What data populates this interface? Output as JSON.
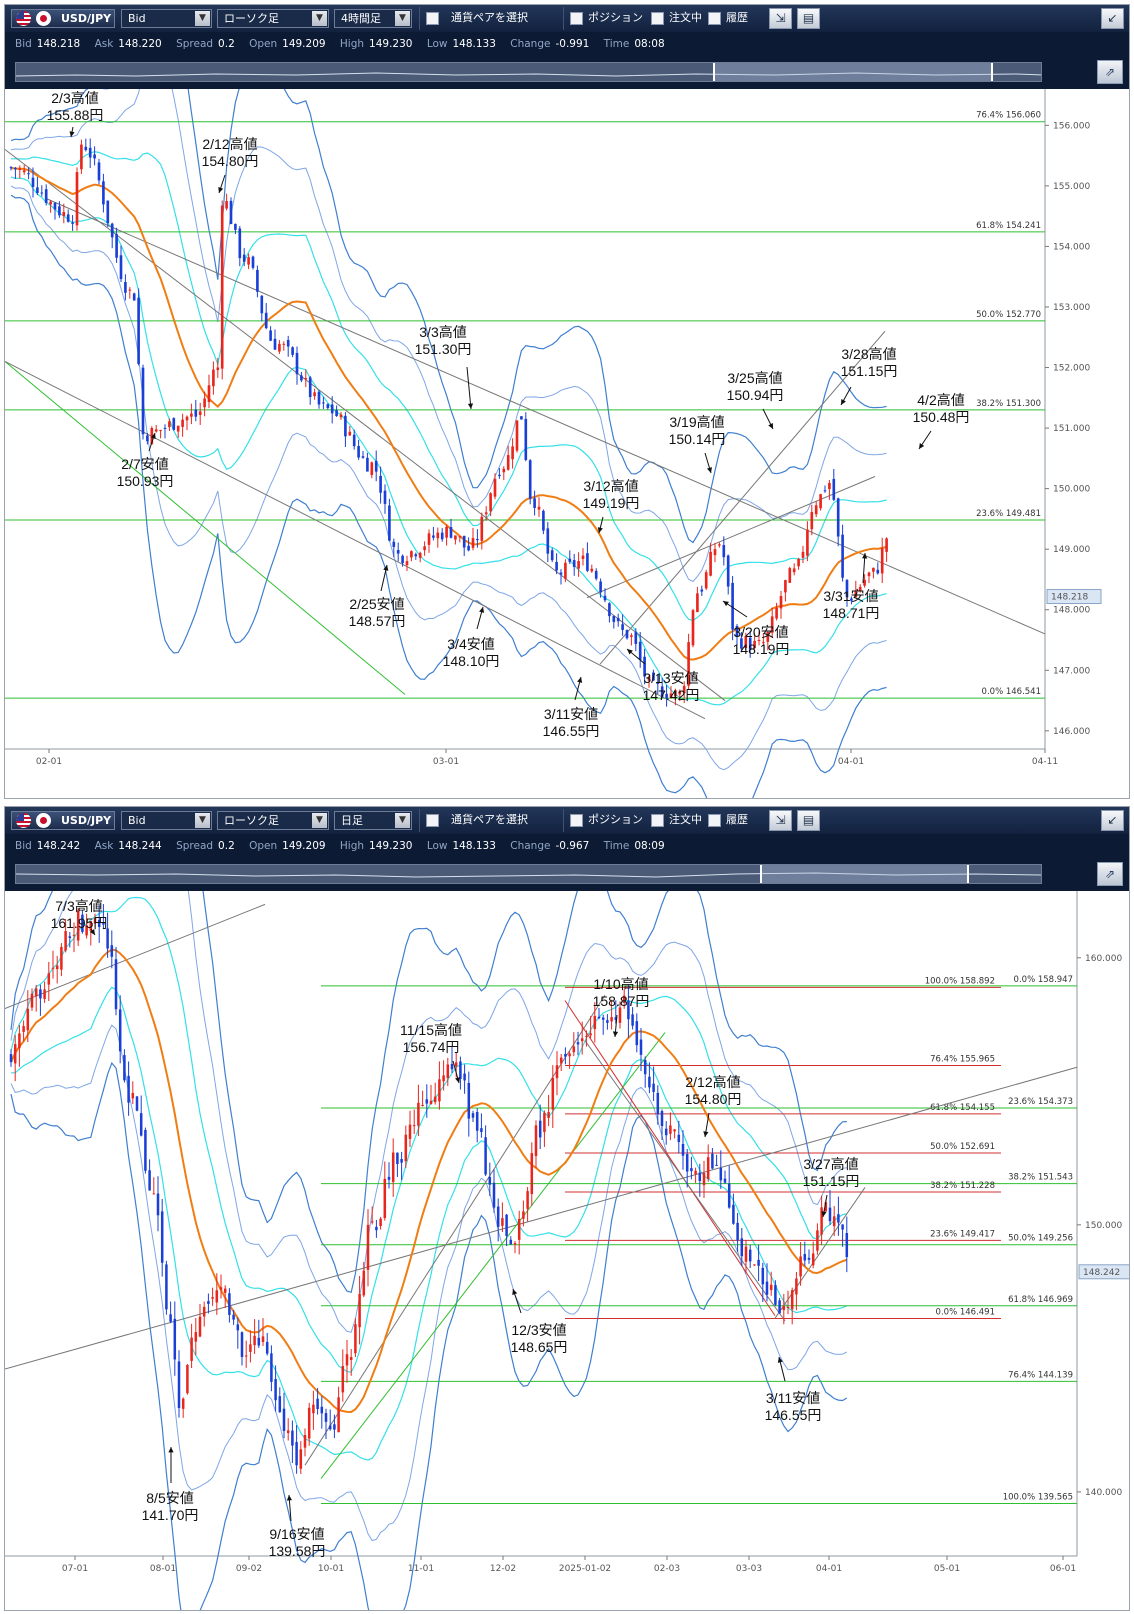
{
  "panels": [
    {
      "toolbar": {
        "symbol": "USD/JPY",
        "price_type": "Bid",
        "chart_type": "ローソク足",
        "timeframe": "4時間足",
        "pair_select": "通貨ペアを選択",
        "position": "ポジション",
        "orders": "注文中",
        "history": "履歴"
      },
      "info": {
        "bid_k": "Bid",
        "bid": "148.218",
        "ask_k": "Ask",
        "ask": "148.220",
        "spread_k": "Spread",
        "spread": "0.2",
        "open_k": "Open",
        "open": "149.209",
        "high_k": "High",
        "high": "149.230",
        "low_k": "Low",
        "low": "148.133",
        "change_k": "Change",
        "change": "-0.991",
        "time_k": "Time",
        "time": "08:08"
      }
    },
    {
      "toolbar": {
        "symbol": "USD/JPY",
        "price_type": "Bid",
        "chart_type": "ローソク足",
        "timeframe": "日足",
        "pair_select": "通貨ペアを選択",
        "position": "ポジション",
        "orders": "注文中",
        "history": "履歴"
      },
      "info": {
        "bid_k": "Bid",
        "bid": "148.242",
        "ask_k": "Ask",
        "ask": "148.244",
        "spread_k": "Spread",
        "spread": "0.2",
        "open_k": "Open",
        "open": "149.209",
        "high_k": "High",
        "high": "149.230",
        "low_k": "Low",
        "low": "148.133",
        "change_k": "Change",
        "change": "-0.967",
        "time_k": "Time",
        "time": "08:09"
      }
    }
  ],
  "colors": {
    "bull": "#e8261e",
    "bear": "#1a3fd6",
    "ma": "#f07d14",
    "bb_outer": "#3f7fd0",
    "bb_mid": "#7fa6e6",
    "bb_inner": "#34e0e8",
    "fib_green": "#2fbf2f",
    "fib_red": "#d23030",
    "trend": "#777777",
    "toolbar": "#162645"
  },
  "chart_data": [
    {
      "type": "candlestick",
      "timeframe": "4時間足",
      "ylim": [
        145.7,
        156.6
      ],
      "yticks": [
        "156.000",
        "155.000",
        "154.000",
        "153.000",
        "152.000",
        "151.000",
        "150.000",
        "149.000",
        "148.000",
        "147.000",
        "146.000"
      ],
      "xticks": [
        "02-01",
        "03-01",
        "04-01",
        "04-11"
      ],
      "current_price": "148.218",
      "key_points": [
        {
          "date": "2/3",
          "value": 155.88,
          "kind": "high"
        },
        {
          "date": "2/7",
          "value": 150.93,
          "kind": "low"
        },
        {
          "date": "2/12",
          "value": 154.8,
          "kind": "high"
        },
        {
          "date": "2/25",
          "value": 148.57,
          "kind": "low"
        },
        {
          "date": "3/3",
          "value": 151.3,
          "kind": "high"
        },
        {
          "date": "3/4",
          "value": 148.1,
          "kind": "low"
        },
        {
          "date": "3/11",
          "value": 146.55,
          "kind": "low"
        },
        {
          "date": "3/12",
          "value": 149.19,
          "kind": "high"
        },
        {
          "date": "3/13",
          "value": 147.42,
          "kind": "low"
        },
        {
          "date": "3/19",
          "value": 150.14,
          "kind": "high"
        },
        {
          "date": "3/20",
          "value": 148.19,
          "kind": "low"
        },
        {
          "date": "3/25",
          "value": 150.94,
          "kind": "high"
        },
        {
          "date": "3/28",
          "value": 151.15,
          "kind": "high"
        },
        {
          "date": "3/31",
          "value": 148.71,
          "kind": "low"
        },
        {
          "date": "4/2",
          "value": 150.48,
          "kind": "high"
        }
      ],
      "annotations": [
        {
          "l1": "2/3高値",
          "l2": "155.88円"
        },
        {
          "l1": "2/12高値",
          "l2": "154.80円"
        },
        {
          "l1": "2/7安値",
          "l2": "150.93円"
        },
        {
          "l1": "3/3高値",
          "l2": "151.30円"
        },
        {
          "l1": "2/25安値",
          "l2": "148.57円"
        },
        {
          "l1": "3/4安値",
          "l2": "148.10円"
        },
        {
          "l1": "3/11安値",
          "l2": "146.55円"
        },
        {
          "l1": "3/12高値",
          "l2": "149.19円"
        },
        {
          "l1": "3/13安値",
          "l2": "147.42円"
        },
        {
          "l1": "3/19高値",
          "l2": "150.14円"
        },
        {
          "l1": "3/20安値",
          "l2": "148.19円"
        },
        {
          "l1": "3/25高値",
          "l2": "150.94円"
        },
        {
          "l1": "3/28高値",
          "l2": "151.15円"
        },
        {
          "l1": "3/31安値",
          "l2": "148.71円"
        },
        {
          "l1": "4/2高値",
          "l2": "150.48円"
        }
      ],
      "fib_levels": [
        {
          "label": "76.4%",
          "value": "156.060",
          "price": 156.06
        },
        {
          "label": "61.8%",
          "value": "154.241",
          "price": 154.241
        },
        {
          "label": "50.0%",
          "value": "152.770",
          "price": 152.77
        },
        {
          "label": "38.2%",
          "value": "151.300",
          "price": 151.3
        },
        {
          "label": "23.6%",
          "value": "149.481",
          "price": 149.481
        },
        {
          "label": "0.0%",
          "value": "146.541",
          "price": 146.541
        }
      ]
    },
    {
      "type": "candlestick",
      "timeframe": "日足",
      "ylim": [
        137.6,
        162.5
      ],
      "yticks": [
        "160.000",
        "150.000",
        "140.000"
      ],
      "xticks": [
        "07-01",
        "08-01",
        "09-02",
        "10-01",
        "11-01",
        "12-02",
        "2025-01-02",
        "02-03",
        "03-03",
        "04-01",
        "05-01",
        "06-01"
      ],
      "current_price": "148.242",
      "key_points": [
        {
          "date": "7/3",
          "value": 161.95,
          "kind": "high"
        },
        {
          "date": "8/5",
          "value": 141.7,
          "kind": "low"
        },
        {
          "date": "9/16",
          "value": 139.58,
          "kind": "low"
        },
        {
          "date": "11/15",
          "value": 156.74,
          "kind": "high"
        },
        {
          "date": "12/3",
          "value": 148.65,
          "kind": "low"
        },
        {
          "date": "1/10",
          "value": 158.87,
          "kind": "high"
        },
        {
          "date": "2/12",
          "value": 154.8,
          "kind": "high"
        },
        {
          "date": "3/11",
          "value": 146.55,
          "kind": "low"
        },
        {
          "date": "3/27",
          "value": 151.15,
          "kind": "high"
        }
      ],
      "annotations": [
        {
          "l1": "7/3高値",
          "l2": "161.95円"
        },
        {
          "l1": "8/5安値",
          "l2": "141.70円"
        },
        {
          "l1": "9/16安値",
          "l2": "139.58円"
        },
        {
          "l1": "11/15高値",
          "l2": "156.74円"
        },
        {
          "l1": "12/3安値",
          "l2": "148.65円"
        },
        {
          "l1": "1/10高値",
          "l2": "158.87円"
        },
        {
          "l1": "2/12高値",
          "l2": "154.80円"
        },
        {
          "l1": "3/11安値",
          "l2": "146.55円"
        },
        {
          "l1": "3/27高値",
          "l2": "151.15円"
        }
      ],
      "fib_green": [
        {
          "label": "0.0%",
          "value": "158.947",
          "price": 158.947
        },
        {
          "label": "23.6%",
          "value": "154.373",
          "price": 154.373
        },
        {
          "label": "38.2%",
          "value": "151.543",
          "price": 151.543
        },
        {
          "label": "50.0%",
          "value": "149.256",
          "price": 149.256
        },
        {
          "label": "61.8%",
          "value": "146.969",
          "price": 146.969
        },
        {
          "label": "76.4%",
          "value": "144.139",
          "price": 144.139
        },
        {
          "label": "100.0%",
          "value": "139.565",
          "price": 139.565
        }
      ],
      "fib_red": [
        {
          "label": "100.0%",
          "value": "158.892",
          "price": 158.892
        },
        {
          "label": "76.4%",
          "value": "155.965",
          "price": 155.965
        },
        {
          "label": "61.8%",
          "value": "154.155",
          "price": 154.155
        },
        {
          "label": "50.0%",
          "value": "152.691",
          "price": 152.691
        },
        {
          "label": "38.2%",
          "value": "151.228",
          "price": 151.228
        },
        {
          "label": "23.6%",
          "value": "149.417",
          "price": 149.417
        },
        {
          "label": "0.0%",
          "value": "146.491",
          "price": 146.491
        }
      ]
    }
  ]
}
